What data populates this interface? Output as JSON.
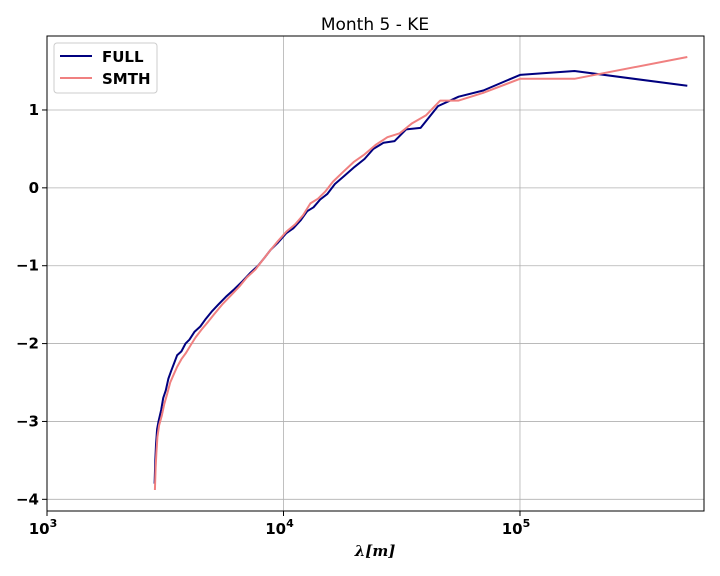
{
  "chart_data": {
    "type": "line",
    "title": "Month 5 - KE",
    "xlabel": "λ[m]",
    "ylabel": "",
    "xscale": "log",
    "xlim": [
      1000,
      600000
    ],
    "ylim": [
      -4.15,
      1.95
    ],
    "grid": true,
    "legend_position": "top-left",
    "x_ticks": [
      {
        "value": 1000,
        "base": "10",
        "exp": "3"
      },
      {
        "value": 10000,
        "base": "10",
        "exp": "4"
      },
      {
        "value": 100000,
        "base": "10",
        "exp": "5"
      }
    ],
    "y_ticks": [
      {
        "value": -4,
        "label": "−4"
      },
      {
        "value": -3,
        "label": "−3"
      },
      {
        "value": -2,
        "label": "−2"
      },
      {
        "value": -1,
        "label": "−1"
      },
      {
        "value": 0,
        "label": "0"
      },
      {
        "value": 1,
        "label": "1"
      }
    ],
    "series": [
      {
        "name": "FULL",
        "color": "#00007f",
        "points": [
          [
            2850,
            -3.8
          ],
          [
            2870,
            -3.5
          ],
          [
            2890,
            -3.3
          ],
          [
            2920,
            -3.1
          ],
          [
            2960,
            -3.0
          ],
          [
            3040,
            -2.85
          ],
          [
            3100,
            -2.7
          ],
          [
            3180,
            -2.6
          ],
          [
            3260,
            -2.45
          ],
          [
            3350,
            -2.35
          ],
          [
            3450,
            -2.25
          ],
          [
            3550,
            -2.15
          ],
          [
            3700,
            -2.1
          ],
          [
            3850,
            -2.0
          ],
          [
            4000,
            -1.95
          ],
          [
            4200,
            -1.85
          ],
          [
            4450,
            -1.78
          ],
          [
            4700,
            -1.68
          ],
          [
            5000,
            -1.58
          ],
          [
            5300,
            -1.5
          ],
          [
            5700,
            -1.4
          ],
          [
            6200,
            -1.3
          ],
          [
            6700,
            -1.2
          ],
          [
            7200,
            -1.1
          ],
          [
            7800,
            -1.0
          ],
          [
            8300,
            -0.9
          ],
          [
            8800,
            -0.8
          ],
          [
            9500,
            -0.7
          ],
          [
            10300,
            -0.58
          ],
          [
            11000,
            -0.52
          ],
          [
            11800,
            -0.42
          ],
          [
            12600,
            -0.3
          ],
          [
            13400,
            -0.25
          ],
          [
            14300,
            -0.15
          ],
          [
            15300,
            -0.08
          ],
          [
            16500,
            0.05
          ],
          [
            18000,
            0.15
          ],
          [
            20000,
            0.27
          ],
          [
            22000,
            0.37
          ],
          [
            24000,
            0.5
          ],
          [
            26500,
            0.58
          ],
          [
            29500,
            0.6
          ],
          [
            33000,
            0.75
          ],
          [
            38000,
            0.77
          ],
          [
            45000,
            1.05
          ],
          [
            55000,
            1.17
          ],
          [
            70000,
            1.25
          ],
          [
            100000,
            1.45
          ],
          [
            170000,
            1.5
          ],
          [
            510000,
            1.31
          ]
        ]
      },
      {
        "name": "SMTH",
        "color": "#f08080",
        "points": [
          [
            2860,
            -3.88
          ],
          [
            2880,
            -3.6
          ],
          [
            2900,
            -3.4
          ],
          [
            2930,
            -3.2
          ],
          [
            2980,
            -3.05
          ],
          [
            3060,
            -2.92
          ],
          [
            3130,
            -2.78
          ],
          [
            3220,
            -2.65
          ],
          [
            3320,
            -2.5
          ],
          [
            3430,
            -2.4
          ],
          [
            3550,
            -2.3
          ],
          [
            3700,
            -2.2
          ],
          [
            3870,
            -2.12
          ],
          [
            4050,
            -2.02
          ],
          [
            4250,
            -1.92
          ],
          [
            4500,
            -1.82
          ],
          [
            4800,
            -1.72
          ],
          [
            5100,
            -1.62
          ],
          [
            5500,
            -1.5
          ],
          [
            6000,
            -1.38
          ],
          [
            6500,
            -1.27
          ],
          [
            7000,
            -1.15
          ],
          [
            7600,
            -1.05
          ],
          [
            8200,
            -0.92
          ],
          [
            8800,
            -0.8
          ],
          [
            9500,
            -0.68
          ],
          [
            10300,
            -0.56
          ],
          [
            11200,
            -0.47
          ],
          [
            12100,
            -0.35
          ],
          [
            13000,
            -0.2
          ],
          [
            14000,
            -0.14
          ],
          [
            15000,
            -0.05
          ],
          [
            16200,
            0.08
          ],
          [
            17800,
            0.2
          ],
          [
            19800,
            0.33
          ],
          [
            22000,
            0.43
          ],
          [
            24500,
            0.55
          ],
          [
            27500,
            0.65
          ],
          [
            31000,
            0.7
          ],
          [
            35000,
            0.83
          ],
          [
            40000,
            0.93
          ],
          [
            46000,
            1.12
          ],
          [
            55000,
            1.12
          ],
          [
            70000,
            1.22
          ],
          [
            100000,
            1.4
          ],
          [
            170000,
            1.4
          ],
          [
            510000,
            1.68
          ]
        ]
      }
    ]
  }
}
